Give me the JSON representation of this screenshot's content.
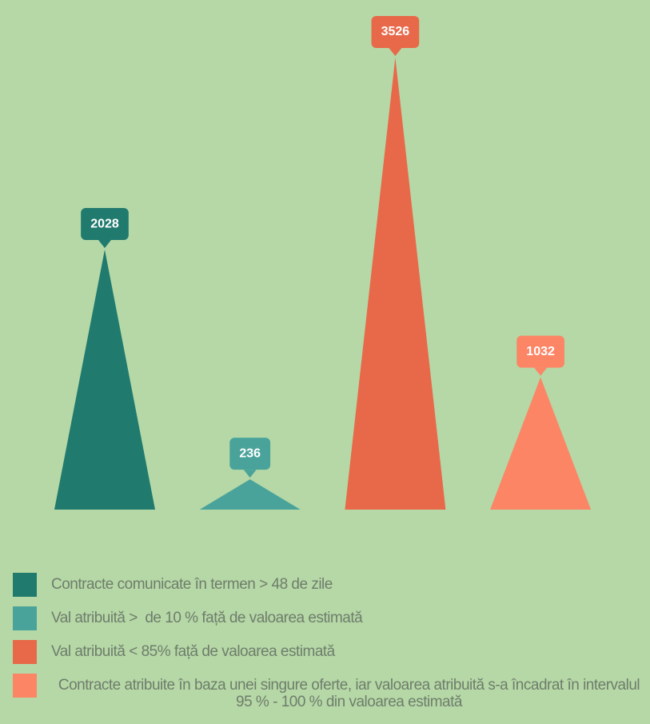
{
  "chart_data": {
    "type": "pyramid",
    "categories": [
      "Contracte comunicate în termen > 48 de zile",
      "Val atribuită >  de 10 % față de valoarea estimată",
      "Val atribuită < 85% față de valoarea estimată",
      "Contracte atribuite în baza unei singure oferte, iar valoarea atribuită s-a încadrat în intervalul 95 % - 100 % din valoarea estimată"
    ],
    "values": [
      2028,
      236,
      3526,
      1032
    ],
    "colors": [
      "#217a6e",
      "#4aa39a",
      "#e8694a",
      "#fc8566"
    ]
  }
}
